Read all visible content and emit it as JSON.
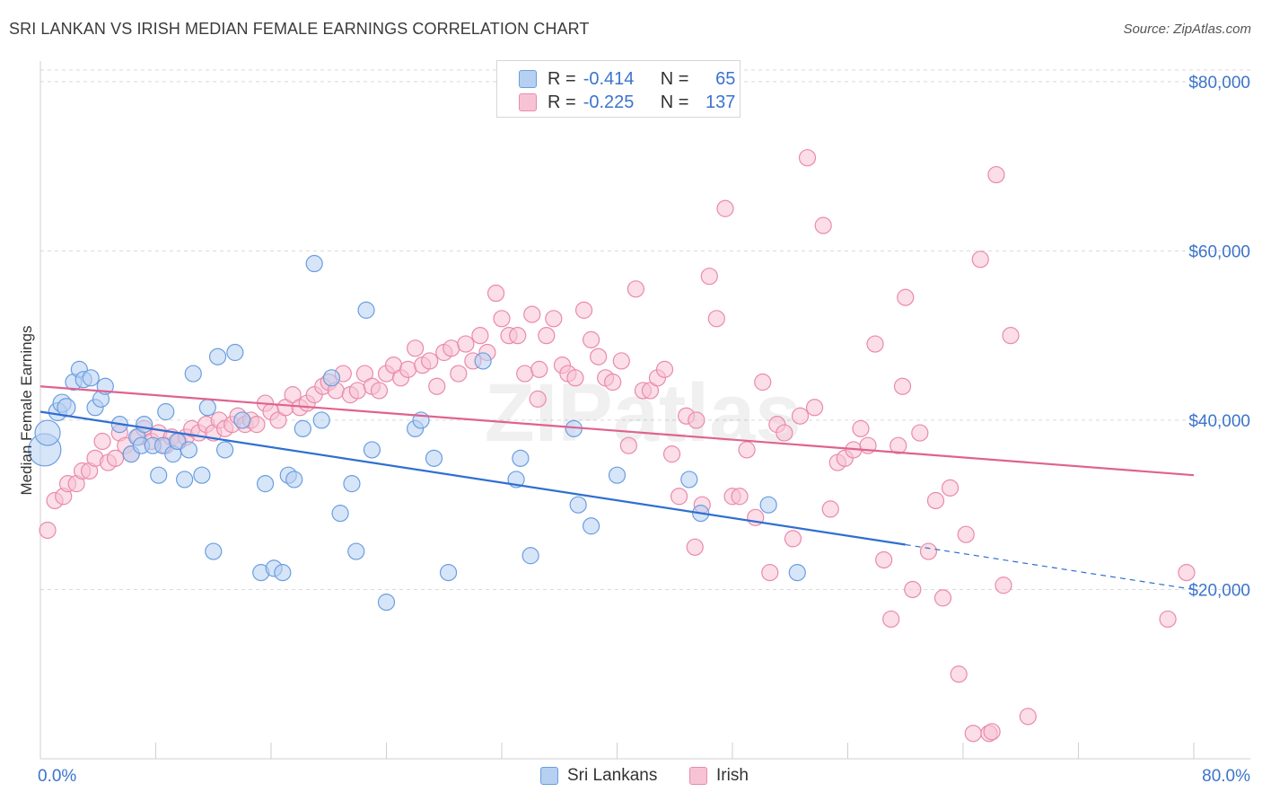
{
  "title": "SRI LANKAN VS IRISH MEDIAN FEMALE EARNINGS CORRELATION CHART",
  "source": "Source: ZipAtlas.com",
  "chart_data": {
    "type": "scatter",
    "title": "SRI LANKAN VS IRISH MEDIAN FEMALE EARNINGS CORRELATION CHART",
    "ylabel": "Median Female Earnings",
    "xlabel": "",
    "xlim": [
      0,
      80
    ],
    "ylim": [
      0,
      82000
    ],
    "x_tick_labels": [
      "0.0%",
      "80.0%"
    ],
    "y_ticks": [
      20000,
      40000,
      60000,
      80000
    ],
    "y_tick_labels": [
      "$20,000",
      "$40,000",
      "$60,000",
      "$80,000"
    ],
    "watermark": "ZIPatlas",
    "legend": {
      "r_label": "R =",
      "n_label": "N =",
      "entries": [
        {
          "name": "Sri Lankans",
          "r": "-0.414",
          "n": "65"
        },
        {
          "name": "Irish",
          "r": "-0.225",
          "n": "137"
        }
      ]
    },
    "series": [
      {
        "name": "Sri Lankans",
        "color": "#6a9ee0",
        "fill": "#b6d0f2",
        "trend": {
          "x0": 0,
          "y0": 41000,
          "x1": 60,
          "y1": 25300,
          "dash_to_x": 80,
          "dash_to_y": 20000
        },
        "points": [
          [
            0.3,
            36500,
            18
          ],
          [
            0.5,
            38500,
            14
          ],
          [
            1.2,
            41000,
            10
          ],
          [
            1.5,
            42000,
            10
          ],
          [
            1.8,
            41500,
            10
          ],
          [
            2.3,
            44500,
            9
          ],
          [
            2.7,
            46000,
            9
          ],
          [
            3.0,
            44800,
            9
          ],
          [
            3.5,
            45000,
            9
          ],
          [
            3.8,
            41500,
            9
          ],
          [
            4.2,
            42500,
            9
          ],
          [
            4.5,
            44000,
            9
          ],
          [
            5.5,
            39500,
            9
          ],
          [
            6.3,
            36000,
            9
          ],
          [
            6.7,
            38000,
            9
          ],
          [
            7.0,
            37000,
            9
          ],
          [
            7.2,
            39500,
            9
          ],
          [
            7.8,
            37000,
            9
          ],
          [
            8.2,
            33500,
            9
          ],
          [
            8.5,
            37000,
            9
          ],
          [
            8.7,
            41000,
            9
          ],
          [
            9.2,
            36000,
            9
          ],
          [
            9.5,
            37500,
            9
          ],
          [
            10.0,
            33000,
            9
          ],
          [
            10.3,
            36500,
            9
          ],
          [
            10.6,
            45500,
            9
          ],
          [
            11.2,
            33500,
            9
          ],
          [
            11.6,
            41500,
            9
          ],
          [
            12.0,
            24500,
            9
          ],
          [
            12.3,
            47500,
            9
          ],
          [
            12.8,
            36500,
            9
          ],
          [
            13.5,
            48000,
            9
          ],
          [
            14.0,
            40000,
            9
          ],
          [
            15.3,
            22000,
            9
          ],
          [
            15.6,
            32500,
            9
          ],
          [
            16.2,
            22500,
            9
          ],
          [
            16.8,
            22000,
            9
          ],
          [
            17.2,
            33500,
            9
          ],
          [
            17.6,
            33000,
            9
          ],
          [
            18.2,
            39000,
            9
          ],
          [
            19.0,
            58500,
            9
          ],
          [
            19.5,
            40000,
            9
          ],
          [
            20.2,
            45000,
            9
          ],
          [
            20.8,
            29000,
            9
          ],
          [
            21.6,
            32500,
            9
          ],
          [
            21.9,
            24500,
            9
          ],
          [
            22.6,
            53000,
            9
          ],
          [
            23.0,
            36500,
            9
          ],
          [
            24.0,
            18500,
            9
          ],
          [
            26.0,
            39000,
            9
          ],
          [
            26.4,
            40000,
            9
          ],
          [
            27.3,
            35500,
            9
          ],
          [
            28.3,
            22000,
            9
          ],
          [
            30.7,
            47000,
            9
          ],
          [
            33.0,
            33000,
            9
          ],
          [
            33.3,
            35500,
            9
          ],
          [
            34.0,
            24000,
            9
          ],
          [
            37.0,
            39000,
            9
          ],
          [
            37.3,
            30000,
            9
          ],
          [
            38.2,
            27500,
            9
          ],
          [
            40.0,
            33500,
            9
          ],
          [
            45.0,
            33000,
            9
          ],
          [
            45.8,
            29000,
            9
          ],
          [
            52.5,
            22000,
            9
          ],
          [
            50.5,
            30000,
            9
          ]
        ]
      },
      {
        "name": "Irish",
        "color": "#ea8aab",
        "fill": "#f7c3d4",
        "trend": {
          "x0": 0,
          "y0": 44000,
          "x1": 80,
          "y1": 33500
        },
        "points": [
          [
            0.5,
            27000,
            9
          ],
          [
            1.0,
            30500,
            9
          ],
          [
            1.6,
            31000,
            9
          ],
          [
            1.9,
            32500,
            9
          ],
          [
            2.5,
            32500,
            9
          ],
          [
            2.9,
            34000,
            9
          ],
          [
            3.4,
            34000,
            9
          ],
          [
            3.8,
            35500,
            9
          ],
          [
            4.3,
            37500,
            9
          ],
          [
            4.7,
            35000,
            9
          ],
          [
            5.2,
            35500,
            9
          ],
          [
            5.5,
            38500,
            9
          ],
          [
            5.9,
            37000,
            9
          ],
          [
            6.3,
            36000,
            9
          ],
          [
            6.8,
            38000,
            9
          ],
          [
            7.2,
            39000,
            9
          ],
          [
            7.7,
            37500,
            9
          ],
          [
            8.2,
            38500,
            9
          ],
          [
            8.7,
            37000,
            9
          ],
          [
            9.1,
            38000,
            9
          ],
          [
            9.6,
            37500,
            9
          ],
          [
            10.1,
            38000,
            9
          ],
          [
            10.5,
            39000,
            9
          ],
          [
            11.0,
            38500,
            9
          ],
          [
            11.5,
            39500,
            9
          ],
          [
            12.0,
            38500,
            9
          ],
          [
            12.4,
            40000,
            9
          ],
          [
            12.8,
            39000,
            9
          ],
          [
            13.3,
            39500,
            9
          ],
          [
            13.7,
            40500,
            9
          ],
          [
            14.2,
            39500,
            9
          ],
          [
            14.6,
            40000,
            9
          ],
          [
            15.0,
            39500,
            9
          ],
          [
            15.6,
            42000,
            9
          ],
          [
            16.0,
            41000,
            9
          ],
          [
            16.5,
            40000,
            9
          ],
          [
            17.0,
            41500,
            9
          ],
          [
            17.5,
            43000,
            9
          ],
          [
            18.0,
            41500,
            9
          ],
          [
            18.5,
            42000,
            9
          ],
          [
            19.0,
            43000,
            9
          ],
          [
            19.6,
            44000,
            9
          ],
          [
            20.0,
            44500,
            9
          ],
          [
            20.5,
            43500,
            9
          ],
          [
            21.0,
            45500,
            9
          ],
          [
            21.5,
            43000,
            9
          ],
          [
            22.0,
            43500,
            9
          ],
          [
            22.5,
            45500,
            9
          ],
          [
            23.0,
            44000,
            9
          ],
          [
            23.5,
            43500,
            9
          ],
          [
            24.0,
            45500,
            9
          ],
          [
            24.5,
            46500,
            9
          ],
          [
            25.0,
            45000,
            9
          ],
          [
            25.5,
            46000,
            9
          ],
          [
            26.0,
            48500,
            9
          ],
          [
            26.5,
            46500,
            9
          ],
          [
            27.0,
            47000,
            9
          ],
          [
            27.5,
            44000,
            9
          ],
          [
            28.0,
            48000,
            9
          ],
          [
            28.5,
            48500,
            9
          ],
          [
            29.0,
            45500,
            9
          ],
          [
            29.5,
            49000,
            9
          ],
          [
            30.0,
            47000,
            9
          ],
          [
            30.5,
            50000,
            9
          ],
          [
            31.0,
            48000,
            9
          ],
          [
            31.6,
            55000,
            9
          ],
          [
            32.0,
            52000,
            9
          ],
          [
            32.5,
            50000,
            9
          ],
          [
            33.1,
            50000,
            9
          ],
          [
            33.6,
            45500,
            9
          ],
          [
            34.1,
            52500,
            9
          ],
          [
            34.6,
            46000,
            9
          ],
          [
            35.1,
            50000,
            9
          ],
          [
            35.6,
            52000,
            9
          ],
          [
            36.2,
            46500,
            9
          ],
          [
            36.6,
            45500,
            9
          ],
          [
            37.1,
            45000,
            9
          ],
          [
            37.7,
            53000,
            9
          ],
          [
            38.2,
            49500,
            9
          ],
          [
            38.7,
            47500,
            9
          ],
          [
            39.2,
            45000,
            9
          ],
          [
            39.7,
            44500,
            9
          ],
          [
            40.3,
            47000,
            9
          ],
          [
            40.8,
            37000,
            9
          ],
          [
            41.3,
            55500,
            9
          ],
          [
            41.8,
            43500,
            9
          ],
          [
            42.3,
            43500,
            9
          ],
          [
            42.8,
            45000,
            9
          ],
          [
            43.3,
            46000,
            9
          ],
          [
            43.8,
            36000,
            9
          ],
          [
            44.3,
            31000,
            9
          ],
          [
            44.8,
            40500,
            9
          ],
          [
            45.4,
            25000,
            9
          ],
          [
            45.9,
            30000,
            9
          ],
          [
            46.4,
            57000,
            9
          ],
          [
            46.9,
            52000,
            9
          ],
          [
            47.5,
            65000,
            9
          ],
          [
            48.0,
            31000,
            9
          ],
          [
            48.5,
            31000,
            9
          ],
          [
            49.0,
            36500,
            9
          ],
          [
            49.6,
            28500,
            9
          ],
          [
            50.1,
            44500,
            9
          ],
          [
            50.6,
            22000,
            9
          ],
          [
            51.1,
            39500,
            9
          ],
          [
            51.6,
            38500,
            9
          ],
          [
            52.2,
            26000,
            9
          ],
          [
            52.7,
            40500,
            9
          ],
          [
            53.2,
            71000,
            9
          ],
          [
            53.7,
            41500,
            9
          ],
          [
            54.3,
            63000,
            9
          ],
          [
            54.8,
            29500,
            9
          ],
          [
            55.3,
            35000,
            9
          ],
          [
            55.8,
            35500,
            9
          ],
          [
            56.4,
            36500,
            9
          ],
          [
            56.9,
            39000,
            9
          ],
          [
            57.4,
            37000,
            9
          ],
          [
            57.9,
            49000,
            9
          ],
          [
            58.5,
            23500,
            9
          ],
          [
            59.0,
            16500,
            9
          ],
          [
            59.5,
            37000,
            9
          ],
          [
            60.0,
            54500,
            9
          ],
          [
            60.5,
            20000,
            9
          ],
          [
            61.0,
            38500,
            9
          ],
          [
            61.6,
            24500,
            9
          ],
          [
            62.1,
            30500,
            9
          ],
          [
            62.6,
            19000,
            9
          ],
          [
            63.1,
            32000,
            9
          ],
          [
            63.7,
            10000,
            9
          ],
          [
            64.2,
            26500,
            9
          ],
          [
            64.7,
            3000,
            9
          ],
          [
            65.2,
            59000,
            9
          ],
          [
            65.8,
            3000,
            9
          ],
          [
            66.3,
            69000,
            9
          ],
          [
            66.8,
            20500,
            9
          ],
          [
            67.3,
            50000,
            9
          ],
          [
            68.5,
            5000,
            9
          ],
          [
            78.2,
            16500,
            9
          ],
          [
            79.5,
            22000,
            9
          ],
          [
            66.0,
            3200,
            9
          ],
          [
            59.8,
            44000,
            9
          ],
          [
            45.5,
            40000,
            9
          ],
          [
            34.5,
            42500,
            9
          ]
        ]
      }
    ]
  }
}
